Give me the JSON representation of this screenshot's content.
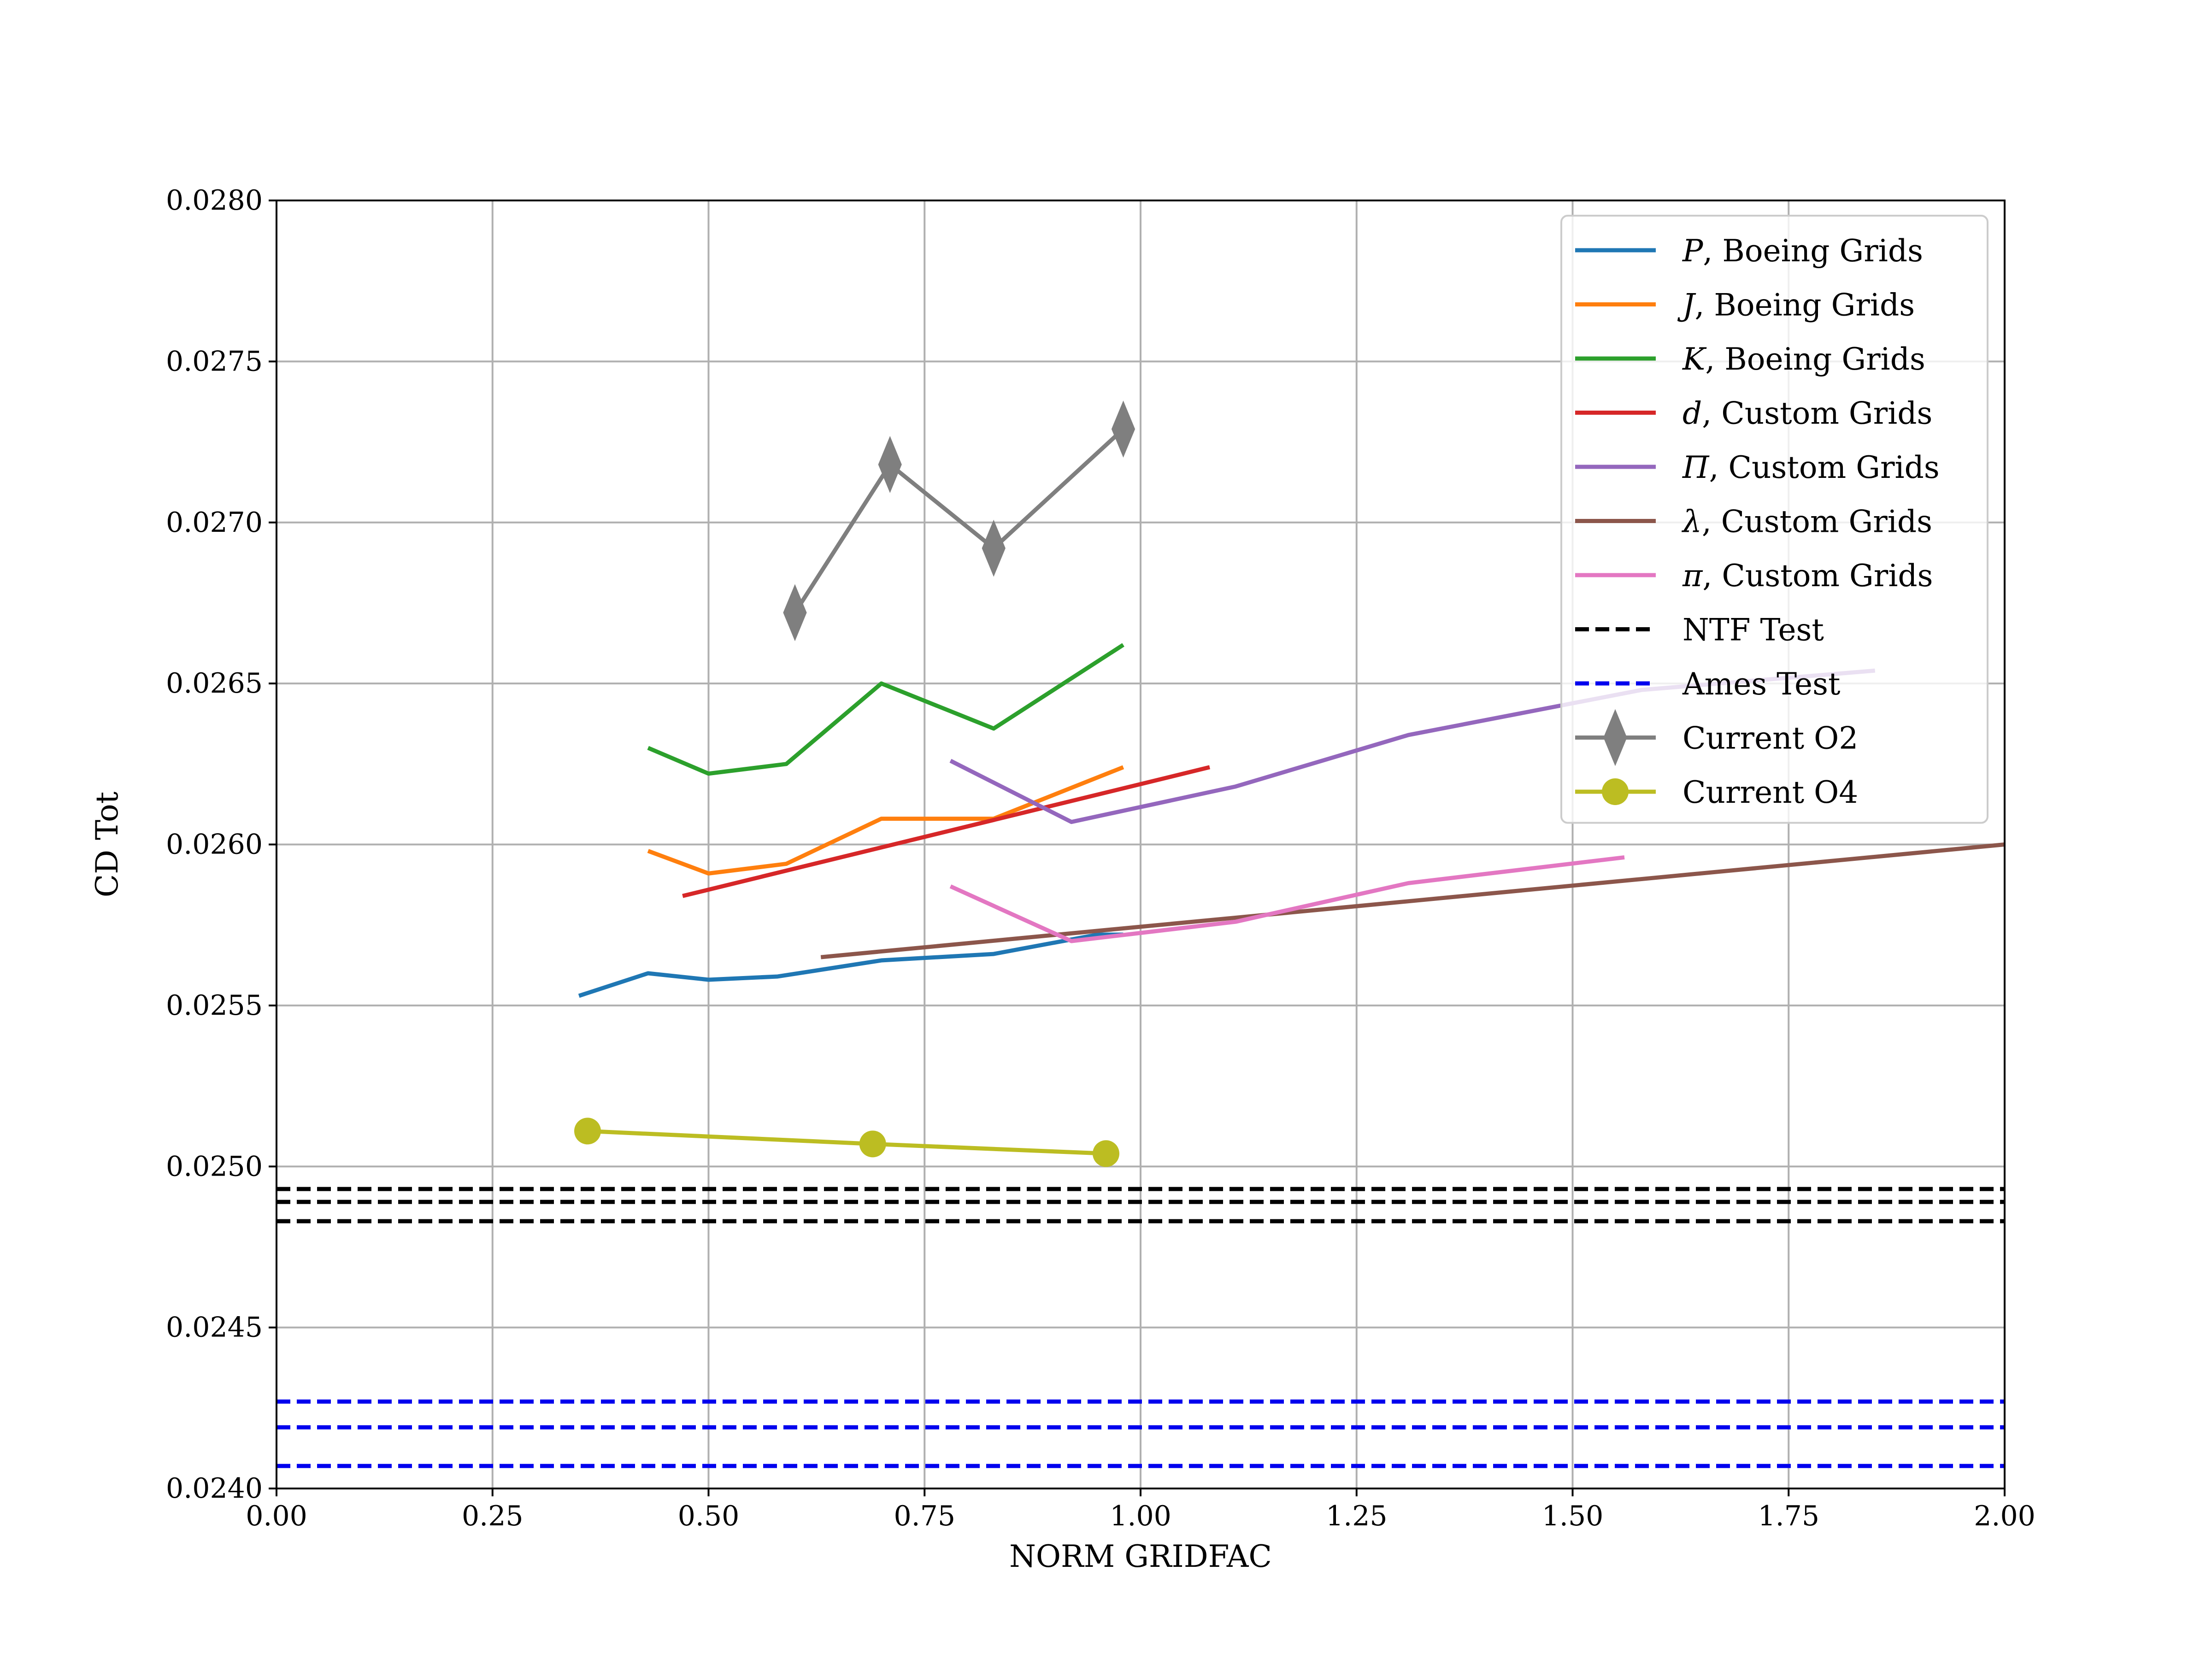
{
  "chart_data": {
    "type": "line",
    "title": "",
    "xlabel": "NORM GRIDFAC",
    "ylabel": "CD Tot",
    "xlim": [
      0.0,
      2.0
    ],
    "ylim": [
      0.024,
      0.028
    ],
    "xticks": [
      "0.00",
      "0.25",
      "0.50",
      "0.75",
      "1.00",
      "1.25",
      "1.50",
      "1.75",
      "2.00"
    ],
    "yticks": [
      "0.0240",
      "0.0245",
      "0.0250",
      "0.0255",
      "0.0260",
      "0.0265",
      "0.0270",
      "0.0275",
      "0.0280"
    ],
    "grid": true,
    "legend_position": "top-right",
    "series": [
      {
        "name": "P, Boeing Grids",
        "legend_symbol": "P",
        "legend_suffix": ", Boeing Grids",
        "color": "#1f77b4",
        "style": "solid",
        "marker": "none",
        "x": [
          0.35,
          0.43,
          0.5,
          0.58,
          0.7,
          0.83,
          0.95,
          0.98
        ],
        "y": [
          0.02553,
          0.0256,
          0.02558,
          0.02559,
          0.02564,
          0.02566,
          0.02572,
          0.02572
        ]
      },
      {
        "name": "J, Boeing Grids",
        "legend_symbol": "J",
        "legend_suffix": ", Boeing Grids",
        "color": "#ff7f0e",
        "style": "solid",
        "marker": "none",
        "x": [
          0.43,
          0.5,
          0.59,
          0.7,
          0.83,
          0.98
        ],
        "y": [
          0.02598,
          0.02591,
          0.02594,
          0.02608,
          0.02608,
          0.02624
        ]
      },
      {
        "name": "K, Boeing Grids",
        "legend_symbol": "K",
        "legend_suffix": ", Boeing Grids",
        "color": "#2ca02c",
        "style": "solid",
        "marker": "none",
        "x": [
          0.43,
          0.5,
          0.59,
          0.7,
          0.83,
          0.98
        ],
        "y": [
          0.0263,
          0.02622,
          0.02625,
          0.0265,
          0.02636,
          0.02662
        ]
      },
      {
        "name": "d, Custom Grids",
        "legend_symbol": "d",
        "legend_suffix": ", Custom Grids",
        "color": "#d62728",
        "style": "solid",
        "marker": "none",
        "x": [
          0.47,
          1.08
        ],
        "y": [
          0.02584,
          0.02624
        ]
      },
      {
        "name": "Π, Custom Grids",
        "legend_symbol": "Π",
        "legend_suffix": ", Custom Grids",
        "color": "#9467bd",
        "style": "solid",
        "marker": "none",
        "x": [
          0.78,
          0.92,
          1.11,
          1.31,
          1.58,
          1.85
        ],
        "y": [
          0.02626,
          0.02607,
          0.02618,
          0.02634,
          0.02648,
          0.02654
        ]
      },
      {
        "name": "λ, Custom Grids",
        "legend_symbol": "λ",
        "legend_suffix": ", Custom Grids",
        "color": "#8c564b",
        "style": "solid",
        "marker": "none",
        "x": [
          0.63,
          2.0
        ],
        "y": [
          0.02565,
          0.026
        ]
      },
      {
        "name": "π, Custom Grids",
        "legend_symbol": "π",
        "legend_suffix": ", Custom Grids",
        "color": "#e377c2",
        "style": "solid",
        "marker": "none",
        "x": [
          0.78,
          0.92,
          1.11,
          1.31,
          1.56
        ],
        "y": [
          0.02587,
          0.0257,
          0.02576,
          0.02588,
          0.02596
        ]
      },
      {
        "name": "NTF Test",
        "legend_symbol": "",
        "legend_suffix": "NTF Test",
        "color": "#000000",
        "style": "dashed",
        "marker": "none",
        "hlines": [
          0.02493,
          0.02489,
          0.02483
        ]
      },
      {
        "name": "Ames Test",
        "legend_symbol": "",
        "legend_suffix": "Ames Test",
        "color": "#0000ee",
        "style": "dashed",
        "marker": "none",
        "hlines": [
          0.02427,
          0.02419,
          0.02407
        ]
      },
      {
        "name": "Current O2",
        "legend_symbol": "",
        "legend_suffix": "Current O2",
        "color": "#7f7f7f",
        "style": "solid",
        "marker": "diamond",
        "x": [
          0.6,
          0.71,
          0.83,
          0.98
        ],
        "y": [
          0.02672,
          0.02718,
          0.02692,
          0.02729
        ]
      },
      {
        "name": "Current O4",
        "legend_symbol": "",
        "legend_suffix": "Current O4",
        "color": "#bcbd22",
        "style": "solid",
        "marker": "circle",
        "x": [
          0.36,
          0.69,
          0.96
        ],
        "y": [
          0.02511,
          0.02507,
          0.02504
        ]
      }
    ]
  }
}
